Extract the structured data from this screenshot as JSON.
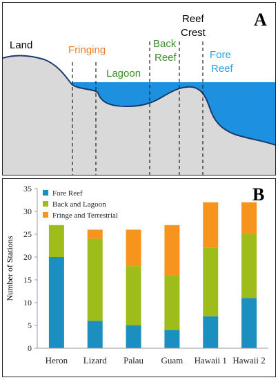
{
  "panel_a": {
    "letter": "A",
    "labels": {
      "land": "Land",
      "fringing": "Fringing",
      "lagoon": "Lagoon",
      "back_reef_1": "Back",
      "back_reef_2": "Reef",
      "reef_crest_1": "Reef",
      "reef_crest_2": "Crest",
      "fore_reef_1": "Fore",
      "fore_reef_2": "Reef"
    },
    "colors": {
      "land": "#000000",
      "fringing": "#f07d2a",
      "lagoon": "#3e8e2a",
      "back_reef": "#3e8e2a",
      "reef_crest": "#000000",
      "fore_reef": "#2ea3e6",
      "water": "#1e90e0",
      "ground": "#d9d9d9"
    }
  },
  "panel_b": {
    "letter": "B"
  },
  "chart_data": {
    "type": "bar",
    "stacked": true,
    "categories": [
      "Heron",
      "Lizard",
      "Palau",
      "Guam",
      "Hawaii 1",
      "Hawaii 2"
    ],
    "series": [
      {
        "name": "Fore Reef",
        "color": "#1b8fc0",
        "values": [
          20,
          6,
          5,
          4,
          7,
          11
        ]
      },
      {
        "name": "Back and Lagoon",
        "color": "#9ebd1b",
        "values": [
          7,
          18,
          13,
          12,
          15,
          14
        ]
      },
      {
        "name": "Fringe and Terrestrial",
        "color": "#f7941d",
        "values": [
          0,
          2,
          8,
          11,
          10,
          7
        ]
      }
    ],
    "ylabel": "Number of Stations",
    "ylim": [
      0,
      35
    ],
    "yticks": [
      0,
      5,
      10,
      15,
      20,
      25,
      30,
      35
    ],
    "legend_position": "top-left",
    "grid": false
  }
}
